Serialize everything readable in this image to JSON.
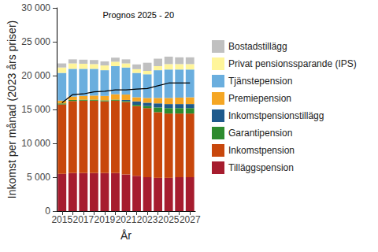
{
  "chart_data": {
    "type": "bar",
    "stacked": true,
    "annotation": "Prognos 2025 - 20",
    "x_label": "År",
    "y_label": "Inkomst per månad (2023 års priser)",
    "categories": [
      "2015",
      null,
      "2017",
      null,
      "2019",
      null,
      "2021",
      null,
      "2023",
      null,
      "2025",
      null,
      "2027"
    ],
    "ylim": [
      0,
      30000
    ],
    "yticks": [
      0,
      {
        "value": 5000,
        "label": "5 000"
      },
      {
        "value": 10000,
        "label": "10 000"
      },
      {
        "value": 15000,
        "label": "15 000"
      },
      {
        "value": 20000,
        "label": "20 000"
      },
      {
        "value": 25000,
        "label": "25 000"
      },
      {
        "value": 30000,
        "label": "30 000"
      }
    ],
    "grid": false,
    "legend": "right",
    "series": [
      {
        "name": "Tilläggspension",
        "color": "#a61c2e",
        "values": [
          5500,
          5600,
          5600,
          5600,
          5600,
          5600,
          5400,
          5200,
          5000,
          4900,
          4900,
          5000,
          5000
        ]
      },
      {
        "name": "Inkomstpension",
        "color": "#c8470c",
        "values": [
          10250,
          10650,
          10700,
          10700,
          10600,
          10700,
          10700,
          10300,
          10200,
          9700,
          9500,
          9400,
          9400
        ]
      },
      {
        "name": "Garantipension",
        "color": "#2e8b2e",
        "values": [
          150,
          150,
          150,
          150,
          150,
          150,
          150,
          200,
          300,
          700,
          800,
          800,
          800
        ]
      },
      {
        "name": "Inkomstpensionstillägg",
        "color": "#1f5a8c",
        "values": [
          0,
          0,
          0,
          0,
          0,
          0,
          150,
          500,
          500,
          600,
          600,
          600,
          600
        ]
      },
      {
        "name": "Premiepension",
        "color": "#f5a623",
        "values": [
          400,
          500,
          550,
          600,
          650,
          800,
          800,
          600,
          700,
          800,
          900,
          950,
          1000
        ]
      },
      {
        "name": "Tjänstepension",
        "color": "#6aaede",
        "values": [
          4100,
          4100,
          4000,
          3950,
          3800,
          4150,
          4000,
          3600,
          3500,
          4100,
          4200,
          4150,
          4100
        ]
      },
      {
        "name": "Privat pensionssparande (IPS)",
        "color": "#fff59a",
        "values": [
          800,
          800,
          750,
          700,
          700,
          650,
          600,
          550,
          500,
          600,
          800,
          800,
          800
        ]
      },
      {
        "name": "Bostadstillägg",
        "color": "#c0c0c0",
        "values": [
          600,
          600,
          600,
          600,
          600,
          600,
          600,
          700,
          1200,
          1100,
          1100,
          1000,
          1000
        ]
      },
      {
        "type": "line",
        "color": "#000000",
        "values": [
          16000,
          17200,
          17300,
          17600,
          17700,
          17900,
          17900,
          18000,
          18100,
          18500,
          18900,
          18900,
          18900
        ]
      }
    ]
  }
}
